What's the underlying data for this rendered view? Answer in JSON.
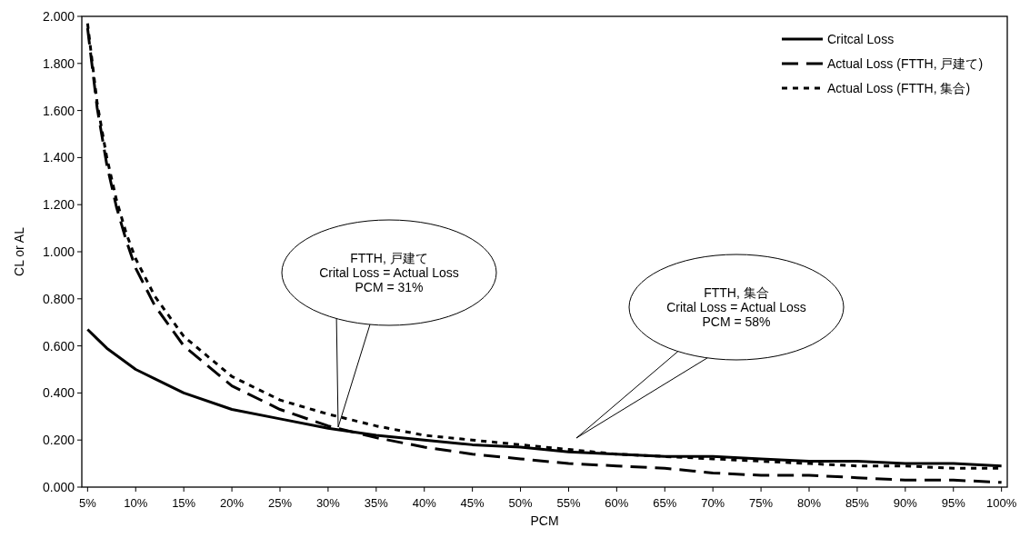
{
  "chart_data": {
    "type": "line",
    "xlabel": "PCM",
    "ylabel": "CL or AL",
    "x": [
      5,
      6,
      7,
      8,
      9,
      10,
      12,
      15,
      20,
      25,
      30,
      35,
      40,
      45,
      50,
      55,
      60,
      65,
      70,
      75,
      80,
      85,
      90,
      95,
      100
    ],
    "series": [
      {
        "name": "Critcal Loss",
        "color": "#000000",
        "line_style": "solid",
        "values": [
          0.67,
          0.63,
          0.59,
          0.56,
          0.53,
          0.5,
          0.46,
          0.4,
          0.33,
          0.29,
          0.25,
          0.22,
          0.2,
          0.18,
          0.17,
          0.15,
          0.14,
          0.13,
          0.13,
          0.12,
          0.11,
          0.11,
          0.1,
          0.1,
          0.09
        ]
      },
      {
        "name": "Actual Loss (FTTH, 戸建て)",
        "color": "#000000",
        "line_style": "dashed",
        "values": [
          1.95,
          1.61,
          1.37,
          1.19,
          1.05,
          0.93,
          0.77,
          0.6,
          0.43,
          0.33,
          0.26,
          0.21,
          0.17,
          0.14,
          0.12,
          0.1,
          0.09,
          0.08,
          0.06,
          0.05,
          0.05,
          0.04,
          0.03,
          0.03,
          0.02
        ]
      },
      {
        "name": "Actual Loss (FTTH, 集合)",
        "color": "#000000",
        "line_style": "dotted",
        "values": [
          1.97,
          1.63,
          1.4,
          1.22,
          1.08,
          0.97,
          0.81,
          0.64,
          0.47,
          0.37,
          0.31,
          0.26,
          0.22,
          0.2,
          0.18,
          0.16,
          0.14,
          0.13,
          0.12,
          0.11,
          0.1,
          0.09,
          0.09,
          0.08,
          0.08
        ]
      }
    ],
    "xlim": [
      4.4,
      100.6
    ],
    "xticks": [
      {
        "value": 5,
        "label": "5%"
      },
      {
        "value": 10,
        "label": "10%"
      },
      {
        "value": 15,
        "label": "15%"
      },
      {
        "value": 20,
        "label": "20%"
      },
      {
        "value": 25,
        "label": "25%"
      },
      {
        "value": 30,
        "label": "30%"
      },
      {
        "value": 35,
        "label": "35%"
      },
      {
        "value": 40,
        "label": "40%"
      },
      {
        "value": 45,
        "label": "45%"
      },
      {
        "value": 50,
        "label": "50%"
      },
      {
        "value": 55,
        "label": "55%"
      },
      {
        "value": 60,
        "label": "60%"
      },
      {
        "value": 65,
        "label": "65%"
      },
      {
        "value": 70,
        "label": "70%"
      },
      {
        "value": 75,
        "label": "75%"
      },
      {
        "value": 80,
        "label": "80%"
      },
      {
        "value": 85,
        "label": "85%"
      },
      {
        "value": 90,
        "label": "90%"
      },
      {
        "value": 95,
        "label": "95%"
      },
      {
        "value": 100,
        "label": "100%"
      }
    ],
    "ylim": [
      0,
      2
    ],
    "yticks": [
      {
        "value": 0,
        "label": "0.000"
      },
      {
        "value": 0.2,
        "label": "0.200"
      },
      {
        "value": 0.4,
        "label": "0.400"
      },
      {
        "value": 0.6,
        "label": "0.600"
      },
      {
        "value": 0.8,
        "label": "0.800"
      },
      {
        "value": 1.0,
        "label": "1.000"
      },
      {
        "value": 1.2,
        "label": "1.200"
      },
      {
        "value": 1.4,
        "label": "1.400"
      },
      {
        "value": 1.6,
        "label": "1.600"
      },
      {
        "value": 1.8,
        "label": "1.800"
      },
      {
        "value": 2.0,
        "label": "2.000"
      }
    ],
    "grid": false,
    "legend": "top right",
    "marker": "none",
    "annotations": [
      "FTTH, 戸建て\nCrital Loss = Actual Loss\nPCM = 31%",
      "FTTH, 集合\nCrital Loss = Actual Loss\nPCM = 58%"
    ]
  }
}
